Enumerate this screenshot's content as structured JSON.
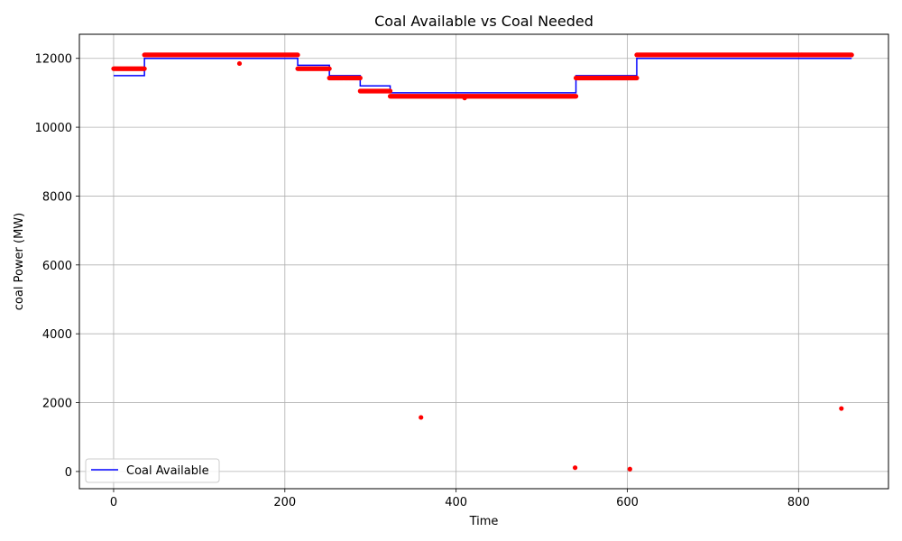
{
  "chart_data": {
    "type": "line",
    "title": "Coal Available vs Coal Needed",
    "xlabel": "Time",
    "ylabel": "coal Power (MW)",
    "xlim": [
      -40,
      905
    ],
    "ylim": [
      -500,
      12700
    ],
    "xticks": [
      0,
      200,
      400,
      600,
      800
    ],
    "yticks": [
      0,
      2000,
      4000,
      6000,
      8000,
      10000,
      12000
    ],
    "grid": true,
    "legend_position": "lower-left",
    "colors": {
      "available": "#0000ff",
      "needed": "#ff0000",
      "grid": "#b0b0b0"
    },
    "series": [
      {
        "name": "Coal Available",
        "kind": "step-line",
        "segments": [
          {
            "x": [
              0,
              36
            ],
            "y": 11500
          },
          {
            "x": [
              36,
              215
            ],
            "y": 12000
          },
          {
            "x": [
              215,
              252
            ],
            "y": 11800
          },
          {
            "x": [
              252,
              288
            ],
            "y": 11500
          },
          {
            "x": [
              288,
              323
            ],
            "y": 11200
          },
          {
            "x": [
              323,
              540
            ],
            "y": 11000
          },
          {
            "x": [
              540,
              611
            ],
            "y": 11500
          },
          {
            "x": [
              611,
              862
            ],
            "y": 12000
          }
        ]
      },
      {
        "kind": "scatter",
        "segments": [
          {
            "x": [
              0,
              36
            ],
            "y": 11700
          },
          {
            "x": [
              36,
              215
            ],
            "y": 12100
          },
          {
            "x": [
              215,
              252
            ],
            "y": 11700
          },
          {
            "x": [
              252,
              288
            ],
            "y": 11430
          },
          {
            "x": [
              288,
              323
            ],
            "y": 11050
          },
          {
            "x": [
              323,
              540
            ],
            "y": 10900
          },
          {
            "x": [
              540,
              611
            ],
            "y": 11430
          },
          {
            "x": [
              611,
              862
            ],
            "y": 12100
          }
        ],
        "outliers": [
          {
            "x": 147,
            "y": 11850
          },
          {
            "x": 359,
            "y": 1570
          },
          {
            "x": 410,
            "y": 10850
          },
          {
            "x": 539,
            "y": 110
          },
          {
            "x": 603,
            "y": 70
          },
          {
            "x": 850,
            "y": 1830
          }
        ]
      }
    ]
  },
  "legend": {
    "available_label": "Coal Available"
  }
}
